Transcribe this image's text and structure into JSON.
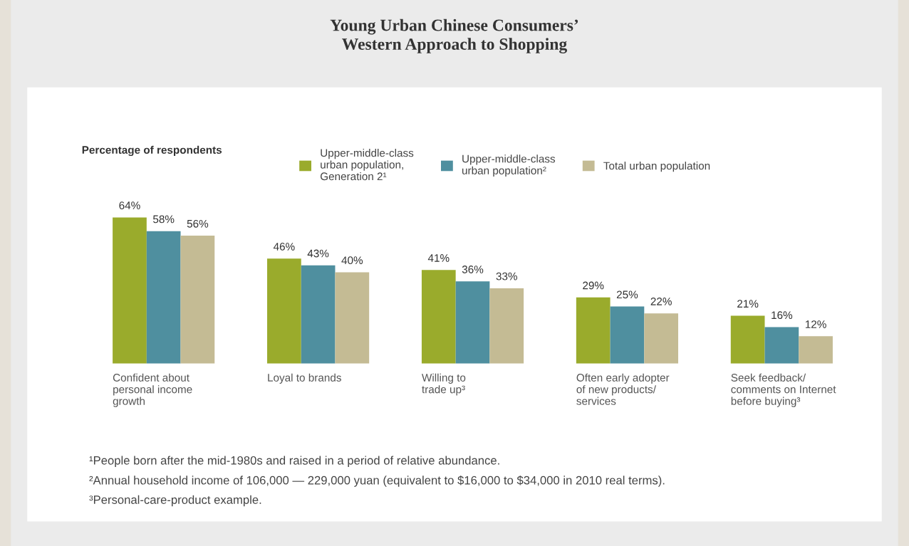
{
  "chart_data": {
    "type": "bar",
    "title": "Young Urban Chinese Consumers’\nWestern Approach to Shopping",
    "categories": [
      "Confident about\npersonal income\ngrowth",
      "Loyal to brands",
      "Willing to\ntrade up³",
      "Often early adopter\nof new products/\nservices",
      "Seek feedback/\ncomments on Internet\nbefore buying³"
    ],
    "series": [
      {
        "name": "Upper-middle-class\nurban population,\nGeneration 2¹",
        "color": "#9aab2c",
        "values": [
          64,
          46,
          41,
          29,
          21
        ],
        "value_labels": [
          "64%",
          "46%",
          "41%",
          "29%",
          "21%"
        ]
      },
      {
        "name": "Upper-middle-class\nurban population²",
        "color": "#4f8f9f",
        "values": [
          58,
          43,
          36,
          25,
          16
        ],
        "value_labels": [
          "58%",
          "43%",
          "36%",
          "25%",
          "16%"
        ]
      },
      {
        "name": "Total urban population",
        "color": "#c4bb94",
        "values": [
          56,
          40,
          33,
          22,
          12
        ],
        "value_labels": [
          "56%",
          "40%",
          "33%",
          "22%",
          "12%"
        ]
      }
    ],
    "legend": "top",
    "tick_labels": "x",
    "grid": false,
    "annotations": [
      "Percentage of respondents",
      "¹People born after the mid-1980s and raised in a period of relative abundance.",
      "²Annual household income of 106,000 — 229,000 yuan (equivalent to $16,000 to $34,000 in 2010 real terms).",
      "³Personal-care-product example."
    ]
  }
}
